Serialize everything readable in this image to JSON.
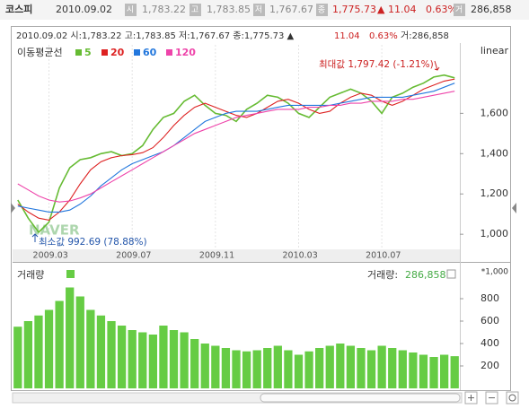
{
  "header": {
    "name": "코스피",
    "date": "2010.09.02",
    "open_label": "시",
    "open": "1,783.22",
    "high_label": "고",
    "high": "1,783.85",
    "low_label": "저",
    "low": "1,767.67",
    "close_label": "종",
    "close": "1,775.73",
    "change": "▲ 11.04",
    "change_pct": "0.63%",
    "volume_label": "거",
    "volume": "286,858"
  },
  "info_line": [
    "2010.09.02 시:1,783.22 고:1,783.85 저:1,767.67 종:1,775.73 ▲",
    "11.04",
    "0.63%",
    "거:286,858"
  ],
  "chart_data": [
    {
      "type": "line",
      "legend_title": "이동평균선",
      "scale_label": "linear",
      "watermark": "NAVER",
      "categories": [
        null,
        null,
        null,
        "2009.03",
        null,
        null,
        null,
        null,
        null,
        null,
        null,
        "2009.07",
        null,
        null,
        null,
        null,
        null,
        null,
        null,
        "2009.11",
        null,
        null,
        null,
        null,
        null,
        null,
        null,
        "2010.03",
        null,
        null,
        null,
        null,
        null,
        null,
        null,
        "2010.07",
        null,
        null,
        null,
        null,
        null,
        null,
        null
      ],
      "series": [
        {
          "name": "5",
          "color": "#66bb33",
          "values": [
            1170,
            1080,
            1010,
            1060,
            1230,
            1330,
            1370,
            1380,
            1400,
            1410,
            1390,
            1400,
            1440,
            1520,
            1580,
            1600,
            1660,
            1690,
            1640,
            1600,
            1590,
            1560,
            1620,
            1650,
            1690,
            1680,
            1650,
            1600,
            1580,
            1630,
            1680,
            1700,
            1720,
            1700,
            1660,
            1600,
            1680,
            1700,
            1730,
            1750,
            1780,
            1790,
            1776
          ]
        },
        {
          "name": "20",
          "color": "#dd2222",
          "values": [
            1150,
            1110,
            1080,
            1070,
            1110,
            1170,
            1250,
            1320,
            1360,
            1380,
            1390,
            1395,
            1405,
            1430,
            1480,
            1540,
            1590,
            1630,
            1650,
            1630,
            1610,
            1590,
            1580,
            1600,
            1630,
            1660,
            1670,
            1650,
            1620,
            1600,
            1610,
            1650,
            1680,
            1700,
            1690,
            1660,
            1640,
            1660,
            1690,
            1720,
            1740,
            1760,
            1770
          ]
        },
        {
          "name": "60",
          "color": "#2277dd",
          "values": [
            1140,
            1130,
            1120,
            1110,
            1110,
            1120,
            1150,
            1190,
            1240,
            1280,
            1320,
            1350,
            1370,
            1390,
            1410,
            1440,
            1480,
            1520,
            1560,
            1580,
            1600,
            1610,
            1610,
            1610,
            1620,
            1630,
            1640,
            1640,
            1640,
            1640,
            1640,
            1650,
            1660,
            1670,
            1680,
            1680,
            1680,
            1680,
            1690,
            1700,
            1710,
            1730,
            1750
          ]
        },
        {
          "name": "120",
          "color": "#ee44aa",
          "values": [
            1250,
            1220,
            1190,
            1170,
            1160,
            1165,
            1180,
            1200,
            1230,
            1260,
            1290,
            1320,
            1350,
            1380,
            1410,
            1440,
            1470,
            1500,
            1520,
            1540,
            1560,
            1580,
            1590,
            1600,
            1610,
            1620,
            1620,
            1620,
            1630,
            1630,
            1640,
            1640,
            1650,
            1650,
            1660,
            1660,
            1660,
            1670,
            1670,
            1680,
            1690,
            1700,
            1710
          ]
        }
      ],
      "ylim": [
        925,
        1940
      ],
      "yticks": [
        {
          "value": 1000,
          "label": "1,000"
        },
        {
          "value": 1200,
          "label": "1,200"
        },
        {
          "value": 1400,
          "label": "1,400"
        },
        {
          "value": 1600,
          "label": "1,600"
        }
      ],
      "annotations": [
        {
          "text": "최대값 1,797.42 (-1.21%)",
          "color": "#cc2222"
        },
        {
          "text": "최소값 992.69 (78.88%)",
          "color": "#2255aa"
        }
      ]
    },
    {
      "type": "bar",
      "title": "거래량",
      "color": "#66cc44",
      "readout_label": "거래량:",
      "readout_value": "286,858",
      "unit_note": "*1,000",
      "values": [
        550,
        600,
        650,
        700,
        780,
        900,
        820,
        700,
        650,
        600,
        560,
        520,
        500,
        480,
        560,
        520,
        500,
        440,
        400,
        380,
        360,
        340,
        330,
        340,
        360,
        380,
        340,
        300,
        330,
        360,
        380,
        400,
        380,
        360,
        340,
        380,
        360,
        340,
        320,
        300,
        280,
        300,
        287
      ],
      "ylim": [
        0,
        1000
      ],
      "yticks": [
        200,
        400,
        600,
        800
      ]
    }
  ]
}
